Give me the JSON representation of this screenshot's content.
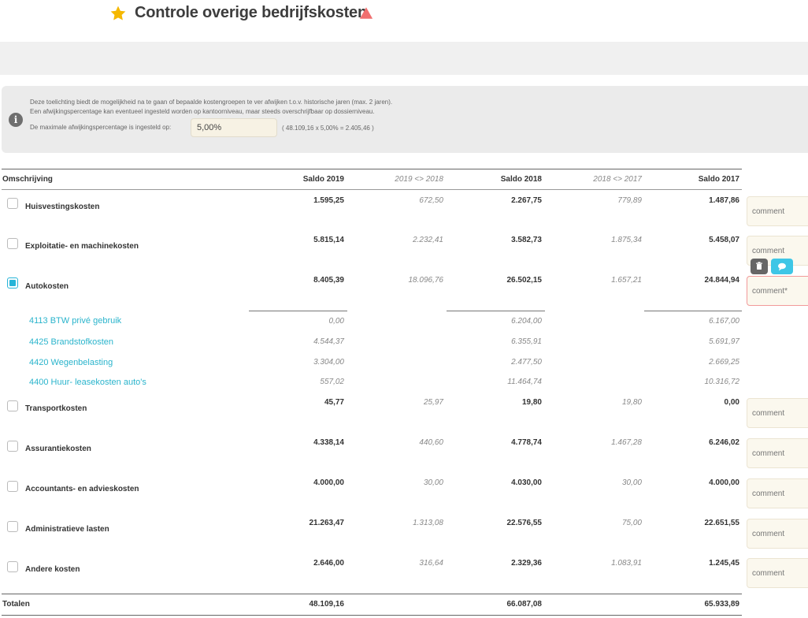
{
  "header": {
    "title": "Controle overige bedrijfskosten",
    "star_icon": "star-icon",
    "warning_icon": "warning-triangle-icon",
    "star_color": "#f5b800",
    "warning_color": "#f07070"
  },
  "info": {
    "line1": "Deze toelichting biedt de mogelijkheid na te gaan of bepaalde kostengroepen te ver afwijken t.o.v. historische jaren (max. 2 jaren).",
    "line2": "Een afwijkingspercentage kan eventueel ingesteld worden op kantoorniveau, maar steeds overschrijfbaar op dossierniveau.",
    "label": "De maximale afwijkingspercentage is ingesteld op:",
    "percentage": "5,00%",
    "calc": "( 48.109,16 x 5,00% = 2.405,46 )"
  },
  "table": {
    "headers": {
      "desc": "Omschrijving",
      "s2019": "Saldo 2019",
      "d1918": "2019 <> 2018",
      "s2018": "Saldo 2018",
      "d1817": "2018 <> 2017",
      "s2017": "Saldo 2017"
    },
    "rows": [
      {
        "label": "Huisvestingskosten",
        "s2019": "1.595,25",
        "d1918": "672,50",
        "s2018": "2.267,75",
        "d1817": "779,89",
        "s2017": "1.487,86",
        "checked": false,
        "comment": "comment"
      },
      {
        "label": "Exploitatie- en machinekosten",
        "s2019": "5.815,14",
        "d1918": "2.232,41",
        "s2018": "3.582,73",
        "d1817": "1.875,34",
        "s2017": "5.458,07",
        "checked": false,
        "comment": "comment"
      },
      {
        "label": "Autokosten",
        "s2019": "8.405,39",
        "d1918": "18.096,76",
        "s2018": "26.502,15",
        "d1817": "1.657,21",
        "s2017": "24.844,94",
        "checked": true,
        "comment": "comment*"
      },
      {
        "label": "Transportkosten",
        "s2019": "45,77",
        "d1918": "25,97",
        "s2018": "19,80",
        "d1817": "19,80",
        "s2017": "0,00",
        "checked": false,
        "comment": "comment"
      },
      {
        "label": "Assurantiekosten",
        "s2019": "4.338,14",
        "d1918": "440,60",
        "s2018": "4.778,74",
        "d1817": "1.467,28",
        "s2017": "6.246,02",
        "checked": false,
        "comment": "comment"
      },
      {
        "label": "Accountants- en advieskosten",
        "s2019": "4.000,00",
        "d1918": "30,00",
        "s2018": "4.030,00",
        "d1817": "30,00",
        "s2017": "4.000,00",
        "checked": false,
        "comment": "comment"
      },
      {
        "label": "Administratieve lasten",
        "s2019": "21.263,47",
        "d1918": "1.313,08",
        "s2018": "22.576,55",
        "d1817": "75,00",
        "s2017": "22.651,55",
        "checked": false,
        "comment": "comment"
      },
      {
        "label": "Andere kosten",
        "s2019": "2.646,00",
        "d1918": "316,64",
        "s2018": "2.329,36",
        "d1817": "1.083,91",
        "s2017": "1.245,45",
        "checked": false,
        "comment": "comment"
      }
    ],
    "sub_rows": [
      {
        "label": "4113 BTW privé gebruik",
        "s2019": "0,00",
        "s2018": "6.204,00",
        "s2017": "6.167,00"
      },
      {
        "label": "4425 Brandstofkosten",
        "s2019": "4.544,37",
        "s2018": "6.355,91",
        "s2017": "5.691,97"
      },
      {
        "label": "4420 Wegenbelasting",
        "s2019": "3.304,00",
        "s2018": "2.477,50",
        "s2017": "2.669,25"
      },
      {
        "label": "4400 Huur- leasekosten auto's",
        "s2019": "557,02",
        "s2018": "11.464,74",
        "s2017": "10.316,72"
      }
    ],
    "totals": {
      "label": "Totalen",
      "s2019": "48.109,16",
      "s2018": "66.087,08",
      "s2017": "65.933,89"
    }
  },
  "actions": {
    "trash_icon": "trash-icon",
    "comment_icon": "speech-bubble-icon"
  }
}
